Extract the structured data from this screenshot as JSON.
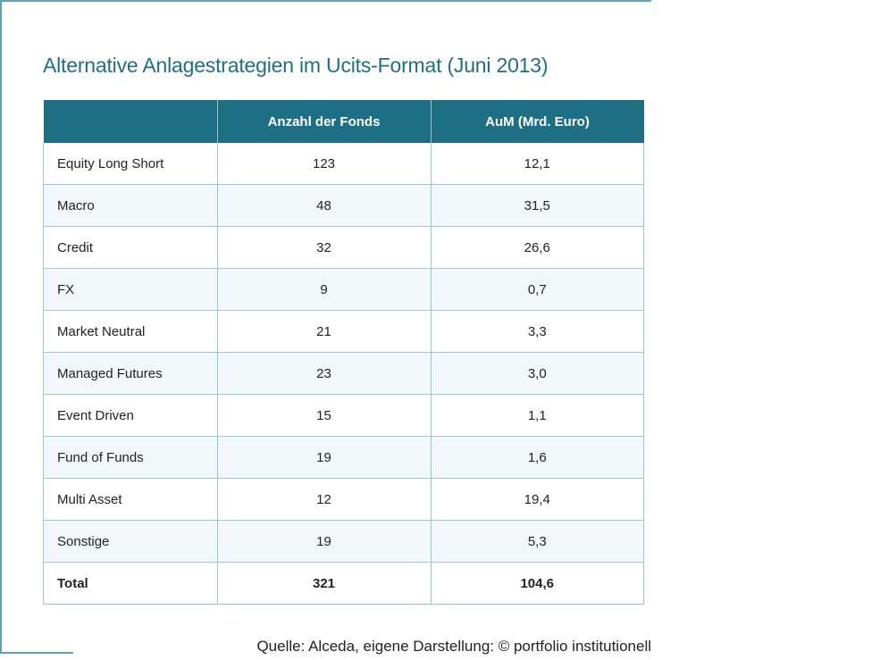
{
  "title": "Alternative Anlagestrategien im Ucits-Format (Juni 2013)",
  "table": {
    "headers": [
      "",
      "Anzahl der Fonds",
      "AuM (Mrd. Euro)"
    ],
    "rows": [
      {
        "label": "Equity Long Short",
        "count": "123",
        "aum": "12,1"
      },
      {
        "label": "Macro",
        "count": "48",
        "aum": "31,5"
      },
      {
        "label": "Credit",
        "count": "32",
        "aum": "26,6"
      },
      {
        "label": "FX",
        "count": "9",
        "aum": "0,7"
      },
      {
        "label": "Market Neutral",
        "count": "21",
        "aum": "3,3"
      },
      {
        "label": "Managed Futures",
        "count": "23",
        "aum": "3,0"
      },
      {
        "label": "Event Driven",
        "count": "15",
        "aum": "1,1"
      },
      {
        "label": "Fund of Funds",
        "count": "19",
        "aum": "1,6"
      },
      {
        "label": "Multi Asset",
        "count": "12",
        "aum": "19,4"
      },
      {
        "label": "Sonstige",
        "count": "19",
        "aum": "5,3"
      }
    ],
    "total": {
      "label": "Total",
      "count": "321",
      "aum": "104,6"
    }
  },
  "source": "Quelle: Alceda, eigene Darstellung: © portfolio institutionell",
  "colors": {
    "header_bg": "#1f6f84",
    "accent": "#5aa6b6",
    "stripe": "#f2f7f9"
  }
}
